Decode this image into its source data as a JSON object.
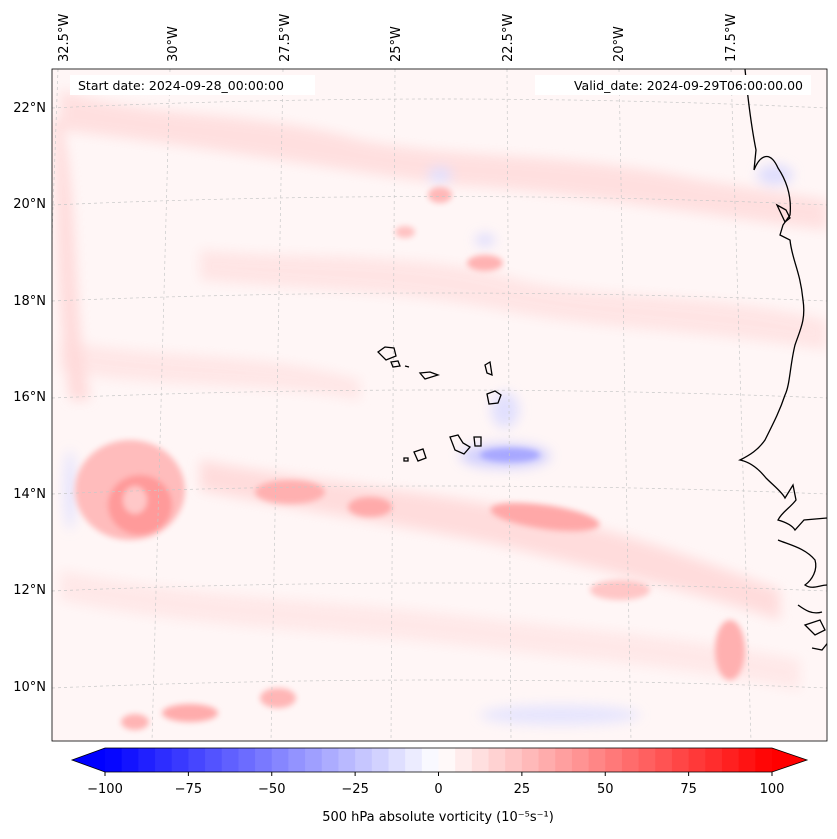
{
  "header": {
    "start_date": "Start date: 2024-09-28_00:00:00",
    "valid_date": "Valid_date: 2024-09-29T06:00:00.00"
  },
  "map": {
    "longitude_labels": [
      "32.5°W",
      "30°W",
      "27.5°W",
      "25°W",
      "22.5°W",
      "20°W",
      "17.5°W"
    ],
    "latitude_labels": [
      "22°N",
      "20°N",
      "18°N",
      "16°N",
      "14°N",
      "12°N",
      "10°N"
    ],
    "field": "500 hPa absolute vorticity",
    "colors": {
      "coastline": "#000000",
      "gridline": "#bbbbbb",
      "positive": "#ff0000",
      "negative": "#0000ff"
    }
  },
  "colorbar": {
    "ticks": [
      "−100",
      "−75",
      "−50",
      "−25",
      "0",
      "25",
      "50",
      "75",
      "100"
    ],
    "label": "500 hPa absolute vorticity (10⁻⁵s⁻¹)",
    "range": [
      -100,
      100
    ],
    "colormap": "bwr"
  }
}
